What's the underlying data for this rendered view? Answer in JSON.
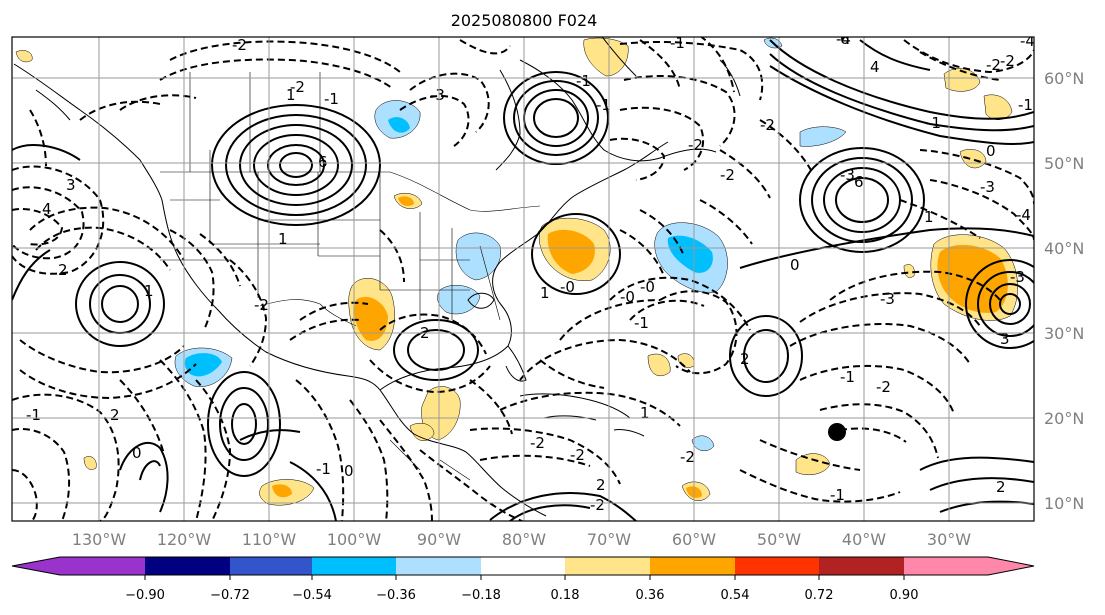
{
  "title": "2025080800 F024",
  "map": {
    "lon_labels": [
      "130°W",
      "120°W",
      "110°W",
      "100°W",
      "90°W",
      "80°W",
      "70°W",
      "60°W",
      "50°W",
      "40°W",
      "30°W"
    ],
    "lat_labels": [
      "60°N",
      "50°N",
      "40°N",
      "30°N",
      "20°N",
      "10°N"
    ],
    "contour_labels": [
      "3",
      "2",
      "4",
      "6",
      "1",
      "6",
      "-2",
      "-3",
      "-4",
      "-1",
      "-1",
      "1",
      "-2",
      "2",
      "-2",
      "-1",
      "-0",
      "-1",
      "2",
      "-2",
      "-2",
      "-1",
      "-1",
      "2",
      "-2",
      "-2",
      "-3",
      "-4",
      "6",
      "4",
      "-3",
      "3",
      "-1",
      "-2",
      "1",
      "-1",
      "2",
      "0",
      "-1",
      "0",
      "-2",
      "-0",
      "-0",
      "1",
      "0",
      "1",
      "-3",
      "-2",
      "-1",
      "-2",
      "1",
      "-2",
      "0",
      "-3",
      "-4",
      "-2",
      "-1",
      "2"
    ],
    "marker": "black-dot"
  },
  "colorbar": {
    "colors": [
      "#9933cc",
      "#000080",
      "#3355cc",
      "#00bfff",
      "#addfff",
      "#ffffff",
      "#ffe48a",
      "#ffa500",
      "#ff3300",
      "#b22222",
      "#ff88aa"
    ],
    "tick_labels": [
      "−0.90",
      "−0.72",
      "−0.54",
      "−0.36",
      "−0.18",
      "0.18",
      "0.36",
      "0.54",
      "0.72",
      "0.90"
    ]
  },
  "fill_colors": {
    "light_blue": "#addfff",
    "blue": "#00bfff",
    "light_yellow": "#ffe48a",
    "orange": "#ffa500"
  }
}
